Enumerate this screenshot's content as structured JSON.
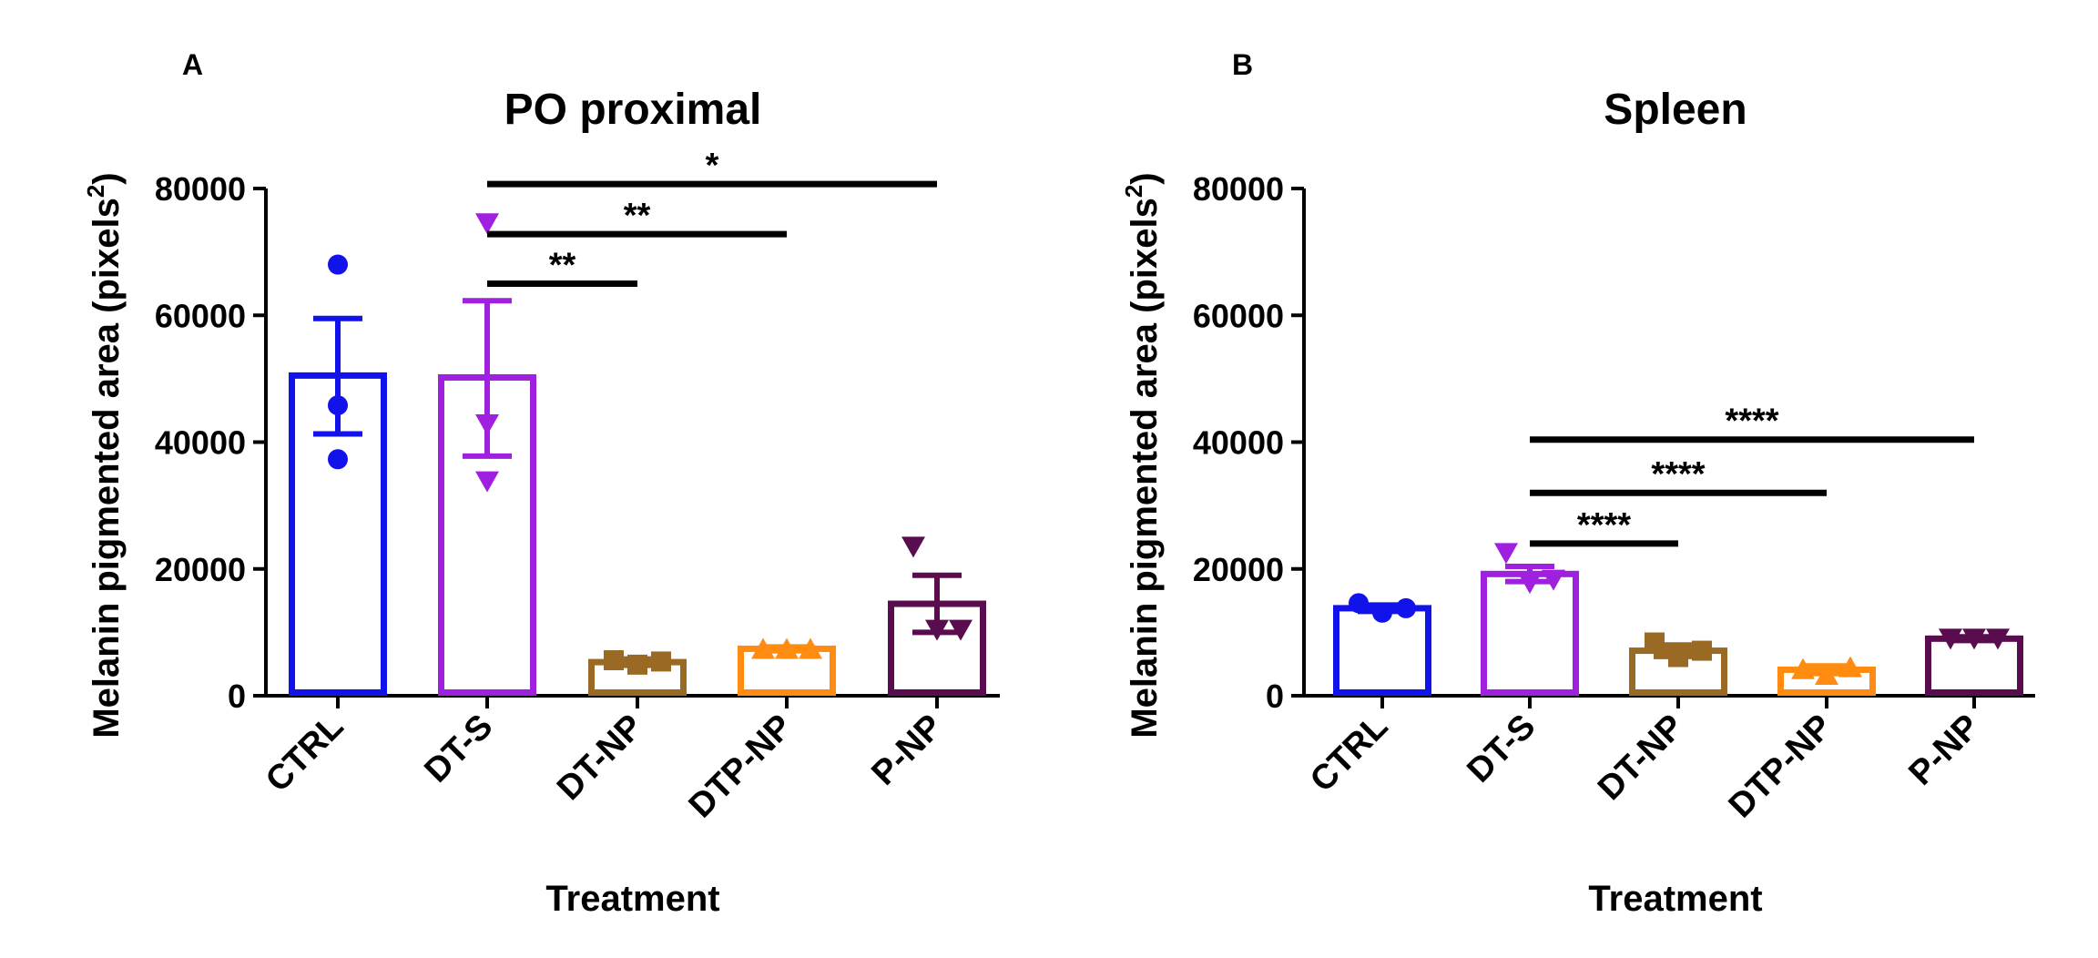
{
  "chart_data": [
    {
      "panel": "A",
      "type": "bar",
      "title": "PO proximal",
      "xlabel": "Treatment",
      "ylabel_main": "Melanin pigmented area (pixels",
      "ylabel_sup": "2",
      "ylabel_close": ")",
      "ylim": [
        0,
        80000
      ],
      "yticks": [
        "0",
        "20000",
        "40000",
        "60000",
        "80000"
      ],
      "categories": [
        "CTRL",
        "DT-S",
        "DT-NP",
        "DTP-NP",
        "P-NP"
      ],
      "values": [
        50500,
        50200,
        5300,
        7400,
        14500
      ],
      "error_upper": [
        59500,
        62300,
        5800,
        7700,
        19000
      ],
      "error_lower": [
        41300,
        37800,
        4800,
        7100,
        10000
      ],
      "points": [
        [
          68000,
          45800,
          37300
        ],
        [
          74500,
          42800,
          33800
        ],
        [
          5600,
          4900,
          5400
        ],
        [
          7400,
          7400,
          7400
        ],
        [
          23500,
          10400,
          10400
        ]
      ],
      "markers": [
        "circle",
        "triangle-down",
        "square",
        "triangle-up",
        "triangle-down"
      ],
      "colors": [
        "#1212ea",
        "#a020e0",
        "#9a6a24",
        "#ff8c10",
        "#5a0d4e"
      ],
      "significance": [
        {
          "from": "DT-S",
          "to": "DT-NP",
          "level": 65000,
          "label": "**"
        },
        {
          "from": "DT-S",
          "to": "DTP-NP",
          "level": 72800,
          "label": "**"
        },
        {
          "from": "DT-S",
          "to": "P-NP",
          "level": 80700,
          "label": "*"
        }
      ]
    },
    {
      "panel": "B",
      "type": "bar",
      "title": "Spleen",
      "xlabel": "Treatment",
      "ylabel_main": "Melanin pigmented area (pixels",
      "ylabel_sup": "2",
      "ylabel_close": ")",
      "ylim": [
        0,
        80000
      ],
      "yticks": [
        "0",
        "20000",
        "40000",
        "60000",
        "80000"
      ],
      "categories": [
        "CTRL",
        "DT-S",
        "DT-NP",
        "DTP-NP",
        "P-NP"
      ],
      "values": [
        13800,
        19200,
        7100,
        4100,
        9000
      ],
      "error_upper": [
        14300,
        20400,
        8000,
        4700,
        9300
      ],
      "error_lower": [
        13300,
        18000,
        6200,
        3500,
        8700
      ],
      "points": [
        [
          14600,
          13100,
          13800
        ],
        [
          22500,
          17800,
          18300
        ],
        [
          8400,
          6100,
          7100
        ],
        [
          4200,
          3300,
          4500
        ],
        [
          9000,
          9000,
          9000
        ]
      ],
      "markers": [
        "circle",
        "triangle-down",
        "square",
        "triangle-up",
        "triangle-down"
      ],
      "colors": [
        "#1212ea",
        "#a020e0",
        "#9a6a24",
        "#ff8c10",
        "#5a0d4e"
      ],
      "significance": [
        {
          "from": "DT-S",
          "to": "DT-NP",
          "level": 24000,
          "label": "****"
        },
        {
          "from": "DT-S",
          "to": "DTP-NP",
          "level": 32000,
          "label": "****"
        },
        {
          "from": "DT-S",
          "to": "P-NP",
          "level": 40400,
          "label": "****"
        }
      ]
    }
  ]
}
